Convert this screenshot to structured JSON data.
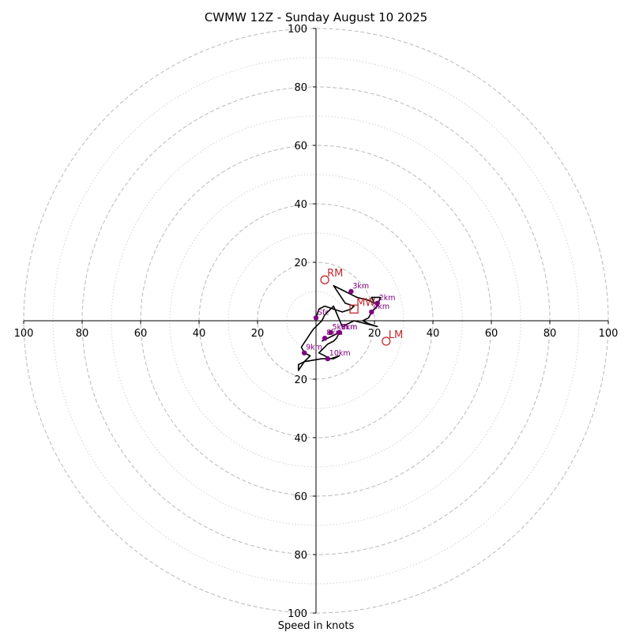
{
  "chart_data": {
    "type": "hodograph",
    "title": "CWMW 12Z - Sunday August 10 2025",
    "xlabel": "Speed in knots",
    "ylabel": "",
    "range": [
      -100,
      100
    ],
    "ticks": {
      "x": [
        {
          "value": -100,
          "label": "100"
        },
        {
          "value": -80,
          "label": "80"
        },
        {
          "value": -60,
          "label": "60"
        },
        {
          "value": -40,
          "label": "40"
        },
        {
          "value": -20,
          "label": "20"
        },
        {
          "value": 20,
          "label": "20"
        },
        {
          "value": 40,
          "label": "40"
        },
        {
          "value": 60,
          "label": "60"
        },
        {
          "value": 80,
          "label": "80"
        },
        {
          "value": 100,
          "label": "100"
        }
      ],
      "y": [
        {
          "value": 100,
          "label": "100"
        },
        {
          "value": 80,
          "label": "80"
        },
        {
          "value": 60,
          "label": "60"
        },
        {
          "value": 40,
          "label": "40"
        },
        {
          "value": 20,
          "label": "20"
        },
        {
          "value": -20,
          "label": "20"
        },
        {
          "value": -40,
          "label": "40"
        },
        {
          "value": -60,
          "label": "60"
        },
        {
          "value": -80,
          "label": "80"
        },
        {
          "value": -100,
          "label": "100"
        }
      ]
    },
    "rings_major": [
      20,
      40,
      60,
      80,
      100
    ],
    "rings_minor": [
      10,
      30,
      50,
      70,
      90
    ],
    "grid": true,
    "trace": [
      [
        0,
        1
      ],
      [
        1,
        4
      ],
      [
        3,
        5
      ],
      [
        6,
        4
      ],
      [
        9,
        3
      ],
      [
        12,
        4
      ],
      [
        13,
        5
      ],
      [
        10,
        6
      ],
      [
        6,
        12
      ],
      [
        10,
        10
      ],
      [
        12,
        9
      ],
      [
        14,
        8
      ],
      [
        18,
        7
      ],
      [
        20,
        6
      ],
      [
        19,
        8
      ],
      [
        22,
        8
      ],
      [
        21,
        5
      ],
      [
        19,
        3
      ],
      [
        18,
        1
      ],
      [
        16,
        0
      ],
      [
        18,
        -1
      ],
      [
        21,
        -2
      ],
      [
        13,
        0
      ],
      [
        9,
        -2
      ],
      [
        6,
        5
      ],
      [
        5,
        4
      ],
      [
        4,
        3
      ],
      [
        3,
        2
      ],
      [
        2,
        0
      ],
      [
        1,
        -1
      ],
      [
        -1,
        -3
      ],
      [
        -3,
        -6
      ],
      [
        -5,
        -9
      ],
      [
        -4,
        -11
      ],
      [
        -2,
        -12
      ],
      [
        -4,
        -14
      ],
      [
        -6,
        -15
      ],
      [
        -6,
        -17
      ],
      [
        -4,
        -14
      ],
      [
        2,
        -13
      ],
      [
        6,
        -13
      ],
      [
        8,
        -12
      ],
      [
        5,
        -13
      ],
      [
        1,
        -11
      ],
      [
        4,
        -8
      ],
      [
        6,
        -7
      ],
      [
        7,
        -6
      ],
      [
        8,
        -4
      ],
      [
        6,
        -5
      ],
      [
        4,
        -6
      ],
      [
        2,
        -7
      ]
    ],
    "height_markers": [
      {
        "label": "Sfc",
        "u": 0,
        "v": 1
      },
      {
        "label": "2km",
        "u": 21,
        "v": 6
      },
      {
        "label": "3km",
        "u": 12,
        "v": 10
      },
      {
        "label": "4km",
        "u": 19,
        "v": 3
      },
      {
        "label": "5km",
        "u": 5,
        "v": -4
      },
      {
        "label": "6km",
        "u": 8,
        "v": -4
      },
      {
        "label": "7km",
        "u": 8,
        "v": -4
      },
      {
        "label": "8km",
        "u": 3,
        "v": -6
      },
      {
        "label": "9km",
        "u": -4,
        "v": -11
      },
      {
        "label": "10km",
        "u": 4,
        "v": -13
      }
    ],
    "storm_motion": [
      {
        "label": "RM",
        "u": 3,
        "v": 14,
        "shape": "circle"
      },
      {
        "label": "MW",
        "u": 13,
        "v": 4,
        "shape": "square"
      },
      {
        "label": "LM",
        "u": 24,
        "v": -7,
        "shape": "circle"
      }
    ],
    "colors": {
      "trace": "#000000",
      "height_marker": "#800080",
      "storm_motion": "#c0282d",
      "grid": "#b9b9b9",
      "axis": "#000000",
      "text": "#000000"
    }
  }
}
